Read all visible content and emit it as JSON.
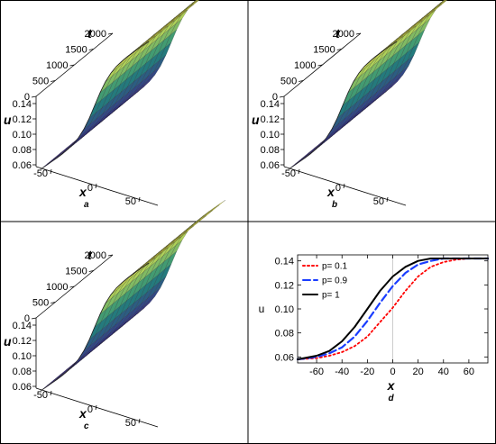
{
  "panels3d": [
    {
      "label": "a",
      "t_ticks": [
        "2000",
        "1500",
        "1000",
        "500",
        "0"
      ],
      "u_ticks": [
        "0.14",
        "0.12",
        "0.10",
        "0.08",
        "0.06"
      ],
      "x_ticks": [
        "-50",
        "0",
        "50"
      ],
      "t_axis_label": "t",
      "u_axis_label": "u",
      "x_axis_label": "x"
    },
    {
      "label": "b",
      "t_ticks": [
        "2000",
        "1500",
        "1000",
        "500",
        "0"
      ],
      "u_ticks": [
        "0.14",
        "0.12",
        "0.10",
        "0.08",
        "0.06"
      ],
      "x_ticks": [
        "-50",
        "0",
        "50"
      ],
      "t_axis_label": "t",
      "u_axis_label": "u",
      "x_axis_label": "x"
    },
    {
      "label": "c",
      "t_ticks": [
        "2000",
        "1500",
        "1000",
        "500",
        "0"
      ],
      "u_ticks": [
        "0.14",
        "0.12",
        "0.10",
        "0.08",
        "0.06"
      ],
      "x_ticks": [
        "-50",
        "0",
        "50"
      ],
      "t_axis_label": "t",
      "u_axis_label": "u",
      "x_axis_label": "x"
    }
  ],
  "colors": {
    "low": "#3b2a8c",
    "mid": "#1f8a7a",
    "high": "#eef04a",
    "panel_border": "#000000",
    "mesh": "#222222"
  },
  "chart_data": {
    "type": "line",
    "label": "d",
    "xlabel": "x",
    "ylabel": "u",
    "xlim": [
      -75,
      75
    ],
    "ylim": [
      0.055,
      0.145
    ],
    "x_ticks": [
      -60,
      -40,
      -20,
      0,
      20,
      40,
      60
    ],
    "x_tick_labels": [
      "-60",
      "-40",
      "-20",
      "0",
      "20",
      "40",
      "60"
    ],
    "y_ticks": [
      0.06,
      0.08,
      0.1,
      0.12,
      0.14
    ],
    "y_tick_labels": [
      "0.06",
      "0.08",
      "0.10",
      "0.12",
      "0.14"
    ],
    "grid": false,
    "legend_position": "top-left",
    "x": [
      -75,
      -60,
      -50,
      -40,
      -30,
      -20,
      -10,
      0,
      10,
      20,
      30,
      40,
      50,
      60,
      75
    ],
    "series": [
      {
        "name": "p= 0.1",
        "color": "#ff0000",
        "dash": "dotted",
        "values": [
          0.058,
          0.059,
          0.061,
          0.064,
          0.069,
          0.077,
          0.089,
          0.101,
          0.115,
          0.127,
          0.135,
          0.139,
          0.141,
          0.142,
          0.142
        ]
      },
      {
        "name": "p= 0.9",
        "color": "#1a3dff",
        "dash": "dashed",
        "values": [
          0.058,
          0.06,
          0.063,
          0.068,
          0.077,
          0.09,
          0.105,
          0.119,
          0.13,
          0.137,
          0.14,
          0.142,
          0.142,
          0.142,
          0.142
        ]
      },
      {
        "name": "p= 1",
        "color": "#000000",
        "dash": "solid",
        "values": [
          0.058,
          0.061,
          0.065,
          0.073,
          0.085,
          0.1,
          0.115,
          0.127,
          0.135,
          0.14,
          0.142,
          0.142,
          0.142,
          0.142,
          0.142
        ]
      }
    ]
  }
}
